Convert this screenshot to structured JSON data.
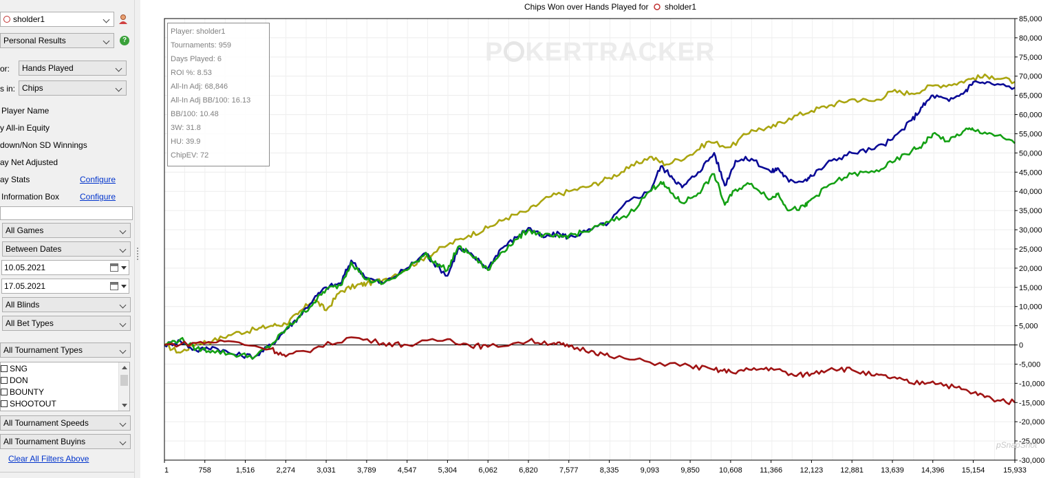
{
  "sidebar": {
    "player_select": "sholder1",
    "report_select": "Personal Results",
    "x_axis_label": "or:",
    "x_axis_value": "Hands Played",
    "units_label": "s in:",
    "units_value": "Chips",
    "options": [
      {
        "label": "Player Name"
      },
      {
        "label": "y All-in Equity"
      },
      {
        "label": "down/Non SD Winnings"
      },
      {
        "label": "ay Net Adjusted"
      },
      {
        "label": "ay Stats",
        "link": "Configure"
      },
      {
        "label": "Information Box",
        "link": "Configure"
      }
    ],
    "filters": {
      "games": "All Games",
      "date_mode": "Between Dates",
      "date_from": "10.05.2021",
      "date_to": "17.05.2021",
      "blinds": "All Blinds",
      "bet_types": "All Bet Types",
      "tournament_types": "All Tournament Types",
      "tournament_type_items": [
        "SNG",
        "DON",
        "BOUNTY",
        "SHOOTOUT"
      ],
      "speeds": "All Tournament Speeds",
      "buyins": "All Tournament Buyins",
      "clear_link": "Clear All Filters Above"
    }
  },
  "chart": {
    "title": "Chips Won over Hands Played for",
    "title_player": "sholder1",
    "watermark": "POKERTRACKER",
    "corner_watermark": "pSnapShot"
  },
  "stats_box": [
    "Player: sholder1",
    "Tournaments: 959",
    "Days Played: 6",
    "ROI %: 8.53",
    "All-In Adj: 68,846",
    "All-In Adj BB/100: 16.13",
    "BB/100: 10.48",
    "3W: 31.8",
    "HU: 39.9",
    "ChipEV: 72"
  ],
  "chart_data": {
    "type": "line",
    "title": "Chips Won over Hands Played for sholder1",
    "x_ticks": [
      "1",
      "758",
      "1,516",
      "2,274",
      "3,031",
      "3,789",
      "4,547",
      "5,304",
      "6,062",
      "6,820",
      "7,577",
      "8,335",
      "9,093",
      "9,850",
      "10,608",
      "11,366",
      "12,123",
      "12,881",
      "13,639",
      "14,396",
      "15,154",
      "15,933"
    ],
    "y_ticks": [
      "85,000",
      "80,000",
      "75,000",
      "70,000",
      "65,000",
      "60,000",
      "55,000",
      "50,000",
      "45,000",
      "40,000",
      "35,000",
      "30,000",
      "25,000",
      "20,000",
      "15,000",
      "10,000",
      "5,000",
      "0",
      "-5,000",
      "-10,000",
      "-15,000",
      "-20,000",
      "-25,000",
      "-30,000"
    ],
    "xlim": [
      1,
      15933
    ],
    "ylim": [
      -30000,
      85000
    ],
    "grid": true,
    "series": [
      {
        "color": "#aaa510",
        "x": [
          1,
          300,
          600,
          900,
          1300,
          1700,
          2000,
          2274,
          2500,
          2800,
          3031,
          3300,
          3600,
          3789,
          4100,
          4547,
          4900,
          5304,
          5700,
          6062,
          6400,
          6820,
          7200,
          7577,
          8000,
          8335,
          8700,
          9093,
          9400,
          9850,
          10200,
          10608,
          11000,
          11366,
          11700,
          12123,
          12500,
          12881,
          13300,
          13639,
          14000,
          14396,
          14800,
          15154,
          15500,
          15933
        ],
        "y": [
          0,
          -2000,
          500,
          1000,
          3000,
          4000,
          5000,
          5500,
          8000,
          12000,
          9000,
          14000,
          15500,
          16000,
          17000,
          20000,
          23000,
          26000,
          28500,
          30500,
          33000,
          35000,
          38500,
          40000,
          41500,
          43500,
          46000,
          49000,
          47000,
          49500,
          53000,
          51500,
          56000,
          56500,
          59000,
          61000,
          62500,
          64000,
          63500,
          66000,
          65500,
          67500,
          68000,
          69500,
          70000,
          68500
        ]
      },
      {
        "color": "#0a0a96",
        "x": [
          1,
          300,
          600,
          900,
          1300,
          1700,
          2000,
          2274,
          2500,
          2800,
          3031,
          3300,
          3500,
          3789,
          4100,
          4547,
          4900,
          5000,
          5304,
          5500,
          5700,
          6062,
          6300,
          6600,
          6820,
          7100,
          7400,
          7577,
          7900,
          8335,
          8700,
          9093,
          9300,
          9500,
          9700,
          10000,
          10300,
          10500,
          10700,
          11000,
          11366,
          11500,
          11700,
          12000,
          12123,
          12500,
          12881,
          13300,
          13639,
          14000,
          14200,
          14396,
          14700,
          15000,
          15154,
          15500,
          15933
        ],
        "y": [
          0,
          1000,
          -1500,
          -500,
          -2500,
          -3000,
          0,
          4000,
          7000,
          12000,
          15000,
          16000,
          22000,
          17500,
          16000,
          20000,
          24000,
          22000,
          18000,
          25000,
          24000,
          20000,
          25000,
          28000,
          30500,
          28000,
          29000,
          28000,
          29500,
          32000,
          37500,
          40000,
          46500,
          44000,
          41000,
          45000,
          50000,
          41500,
          48000,
          48500,
          45000,
          46000,
          42500,
          43000,
          44000,
          48000,
          50000,
          51000,
          53500,
          58500,
          62000,
          65000,
          63500,
          66000,
          68500,
          68000,
          67000
        ]
      },
      {
        "color": "#14a014",
        "x": [
          1,
          300,
          600,
          900,
          1300,
          1700,
          2000,
          2274,
          2500,
          2800,
          3031,
          3300,
          3500,
          3789,
          4100,
          4547,
          4900,
          5000,
          5304,
          5500,
          5700,
          6062,
          6300,
          6600,
          6820,
          7100,
          7400,
          7577,
          7900,
          8335,
          8700,
          9093,
          9300,
          9500,
          9700,
          10000,
          10300,
          10500,
          10700,
          11000,
          11366,
          11500,
          11700,
          12000,
          12123,
          12500,
          12881,
          13300,
          13639,
          14000,
          14200,
          14396,
          14700,
          15000,
          15154,
          15500,
          15933
        ],
        "y": [
          0,
          1500,
          -1000,
          -1500,
          -2500,
          -3000,
          0,
          4000,
          7000,
          11000,
          14500,
          15500,
          21500,
          17000,
          16000,
          19500,
          24000,
          22000,
          19500,
          25500,
          24000,
          19500,
          24000,
          27500,
          30000,
          28500,
          28000,
          28500,
          29500,
          32000,
          34000,
          40000,
          42500,
          39500,
          37000,
          39500,
          44500,
          36500,
          40500,
          42000,
          38000,
          39500,
          35000,
          36000,
          38000,
          42000,
          44500,
          45000,
          47500,
          50500,
          52000,
          55000,
          53000,
          56000,
          56000,
          55000,
          52500
        ]
      },
      {
        "color": "#a01414",
        "x": [
          1,
          600,
          1200,
          2000,
          2274,
          2800,
          3500,
          4100,
          4547,
          5304,
          5700,
          6062,
          6820,
          7300,
          7577,
          8000,
          8335,
          9093,
          9850,
          10300,
          10608,
          11000,
          11366,
          11800,
          12123,
          12500,
          12881,
          13300,
          13639,
          14000,
          14396,
          14800,
          15154,
          15500,
          15933
        ],
        "y": [
          0,
          500,
          1000,
          -1000,
          -3000,
          -1000,
          2000,
          500,
          0,
          1500,
          0,
          -500,
          1000,
          500,
          -500,
          -1500,
          -3000,
          -4500,
          -5500,
          -6500,
          -7000,
          -6500,
          -6000,
          -8000,
          -7500,
          -6000,
          -6500,
          -8000,
          -8500,
          -10000,
          -9500,
          -11000,
          -12500,
          -14000,
          -15000
        ]
      }
    ]
  }
}
